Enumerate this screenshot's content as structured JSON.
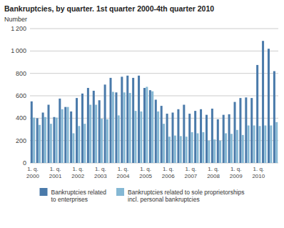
{
  "chart_data": {
    "type": "bar",
    "title": "Bankruptcies, by quarter. 1st quarter 2000-4th quarter 2010",
    "ylabel": "Number",
    "categories": [
      "1. q.\n2000",
      null,
      null,
      null,
      "1. q.\n2001",
      null,
      null,
      null,
      "1. q.\n2002",
      null,
      null,
      null,
      "1. q.\n2003",
      null,
      null,
      null,
      "1. q.\n2004",
      null,
      null,
      null,
      "1. q.\n2005",
      null,
      null,
      null,
      "1. q.\n2006",
      null,
      null,
      null,
      "1. q.\n2007",
      null,
      null,
      null,
      "1. q.\n2008",
      null,
      null,
      null,
      "1. q.\n2009",
      null,
      null,
      null,
      "1. q.\n2010",
      null,
      null,
      null
    ],
    "series": [
      {
        "name": "Bankruptcies related\nto enterprises",
        "color": "#4a7aaa",
        "values": [
          550,
          400,
          450,
          520,
          410,
          575,
          500,
          460,
          580,
          620,
          670,
          645,
          560,
          700,
          760,
          630,
          770,
          780,
          760,
          780,
          670,
          650,
          565,
          510,
          440,
          450,
          480,
          520,
          440,
          465,
          480,
          430,
          485,
          390,
          430,
          435,
          545,
          580,
          585,
          580,
          875,
          1090,
          1020,
          820
        ]
      },
      {
        "name": "Bankruptcies related to sole proprietorships\nincl. personal bankruptcies",
        "color": "#85b8d4",
        "values": [
          405,
          340,
          410,
          350,
          405,
          480,
          500,
          265,
          330,
          350,
          520,
          520,
          395,
          390,
          635,
          425,
          630,
          625,
          465,
          460,
          680,
          640,
          460,
          350,
          235,
          245,
          240,
          235,
          275,
          265,
          275,
          200,
          210,
          200,
          265,
          260,
          295,
          250,
          335,
          335,
          330,
          335,
          335,
          365
        ]
      }
    ],
    "ylim": [
      0,
      1200
    ],
    "yticks": [
      0,
      200,
      400,
      600,
      800,
      {
        "value": 1000,
        "label": "1 000"
      },
      {
        "value": 1200,
        "label": "1 200"
      }
    ],
    "grid": true,
    "legend": "bottom"
  }
}
